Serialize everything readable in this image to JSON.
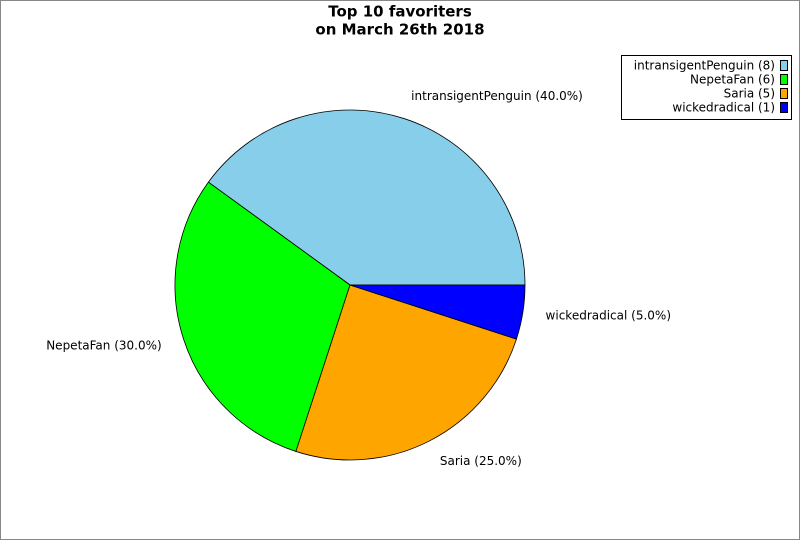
{
  "chart_data": {
    "type": "pie",
    "title_lines": [
      "Top 10 favoriters",
      "on March 26th 2018"
    ],
    "categories": [
      "intransigentPenguin",
      "NepetaFan",
      "Saria",
      "wickedradical"
    ],
    "values": [
      40,
      30,
      25,
      5
    ],
    "value_labels": [
      "intransigentPenguin (40.0%)",
      "NepetaFan (30.0%)",
      "Saria (25.0%)",
      "wickedradical (5.0%)"
    ],
    "legend_labels": [
      "intransigentPenguin (8)",
      "NepetaFan (6)",
      "Saria (5)",
      "wickedradical (1)"
    ],
    "colors": [
      "#87ceeb",
      "#00ff00",
      "#ffa500",
      "#0000ff"
    ],
    "legend": "upper right"
  }
}
